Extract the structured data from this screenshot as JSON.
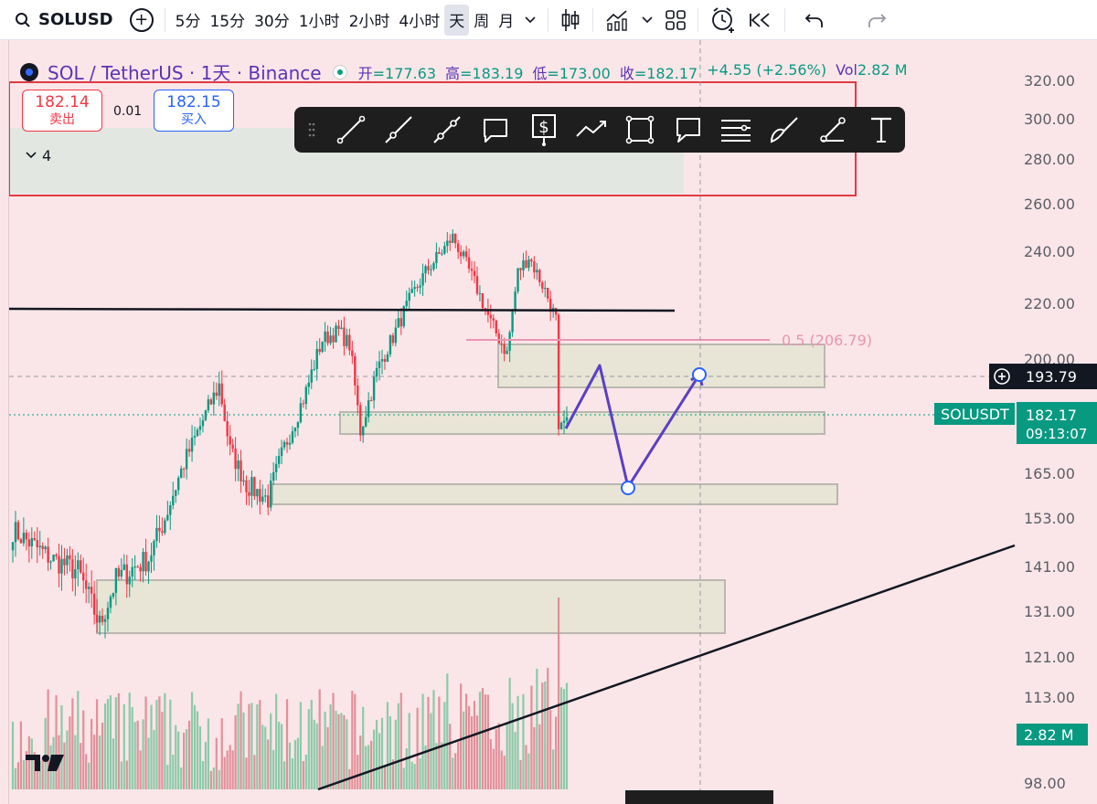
{
  "toolbar": {
    "symbol": "SOLUSD",
    "intervals": [
      "5分",
      "15分",
      "30分",
      "1小时",
      "2小时",
      "4小时",
      "天",
      "周",
      "月"
    ],
    "active_interval": "天",
    "icons": [
      "search-icon",
      "add-symbol-icon",
      "interval-dropdown-icon",
      "candlestick-icon",
      "indicators-icon",
      "dropdown-icon",
      "layout-grid-icon",
      "alert-clock-icon",
      "replay-icon",
      "undo-icon",
      "redo-icon"
    ]
  },
  "legend": {
    "title": "SOL / TetherUS · 1天 · Binance",
    "open_label": "开",
    "open": "=177.63",
    "high_label": "高",
    "high": "=183.19",
    "low_label": "低",
    "low": "=173.00",
    "close_label": "收",
    "close": "=182.17",
    "change": "+4.55 (+2.56%)",
    "vol_label": "Vol",
    "vol": "2.82 M"
  },
  "trade": {
    "sell_price": "182.14",
    "sell_label": "卖出",
    "spread": "0.01",
    "buy_price": "182.15",
    "buy_label": "买入"
  },
  "collapse": {
    "count": "4"
  },
  "draw_tools": [
    "grip-icon",
    "trend-line-icon",
    "ray-icon",
    "extended-line-icon",
    "callout-icon",
    "price-label-icon",
    "path-icon",
    "rectangle-icon",
    "comment-icon",
    "parallel-lines-icon",
    "brush-icon",
    "measure-icon",
    "text-tool-icon"
  ],
  "price_axis": {
    "ticks": [
      "320.00",
      "300.00",
      "280.00",
      "260.00",
      "240.00",
      "220.00",
      "200.00",
      "165.00",
      "153.00",
      "141.00",
      "131.00",
      "121.00",
      "113.00",
      "98.00"
    ],
    "crosshair_price": "193.79",
    "symbol_tag": "SOLUSDT",
    "current_price": "182.17",
    "countdown": "09:13:07",
    "volume_tag": "2.82 M"
  },
  "annotations": {
    "fib_label": "0.5 (206.79)"
  },
  "colors": {
    "background": "#fae6e8",
    "up": "#089981",
    "down": "#f23645",
    "zone_fill": "#e8e5d6",
    "projection": "#5b3fc4",
    "accent": "#2962ff"
  },
  "chart_data": {
    "type": "candlestick",
    "symbol": "SOL / TetherUS",
    "timeframe": "1天",
    "last": {
      "open": 177.63,
      "high": 183.19,
      "low": 173.0,
      "close": 182.17,
      "change": 4.55,
      "change_pct": 2.56,
      "volume": "2.82 M"
    },
    "y_ticks": [
      320,
      300,
      280,
      260,
      240,
      220,
      200,
      165,
      153,
      141,
      131,
      121,
      113,
      98
    ],
    "fib_level": {
      "ratio": 0.5,
      "price": 206.79
    }
  }
}
